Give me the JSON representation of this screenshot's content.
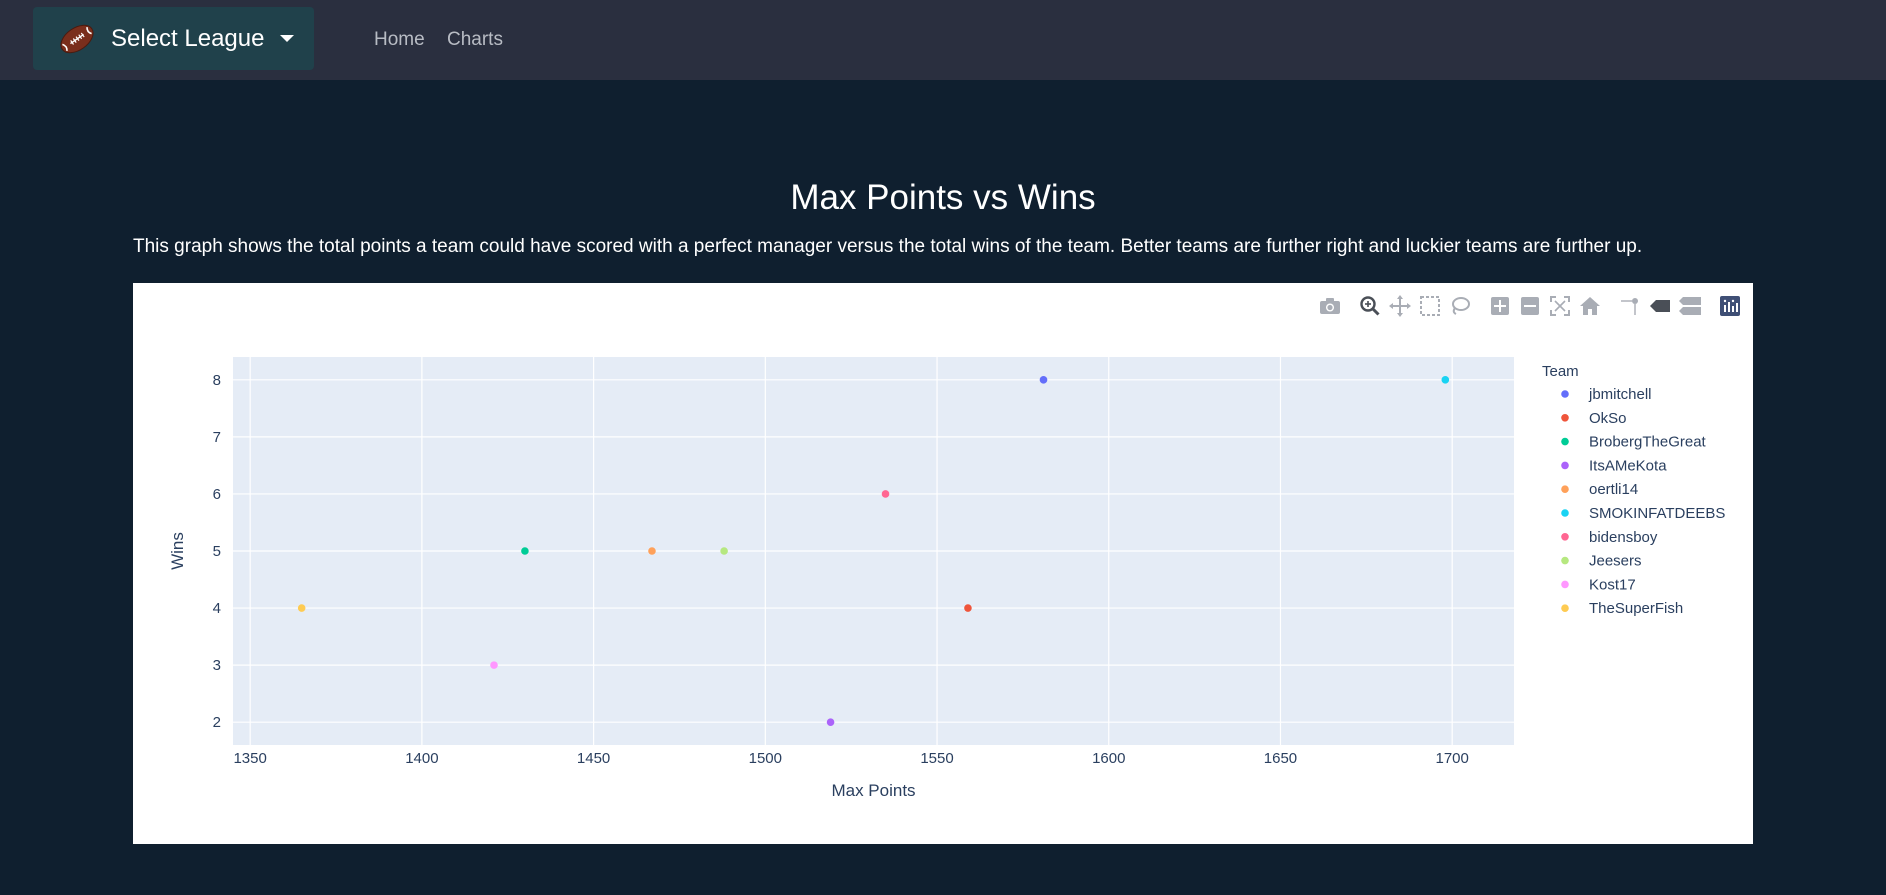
{
  "navbar": {
    "league_button_label": "Select League",
    "links": [
      "Home",
      "Charts"
    ]
  },
  "page": {
    "title": "Max Points vs Wins",
    "description": "This graph shows the total points a team could have scored with a perfect manager versus the total wins of the team. Better teams are further right and luckier teams are further up."
  },
  "modebar_icons": [
    "camera-icon",
    "zoom-icon",
    "pan-icon",
    "box-select-icon",
    "lasso-icon",
    "zoom-in-icon",
    "zoom-out-icon",
    "autoscale-icon",
    "reset-axes-icon",
    "spike-lines-icon",
    "hover-closest-icon",
    "hover-compare-icon",
    "plotly-logo-icon"
  ],
  "chart_data": {
    "type": "scatter",
    "xlabel": "Max Points",
    "ylabel": "Wins",
    "xlim": [
      1345,
      1718
    ],
    "ylim": [
      1.6,
      8.4
    ],
    "xticks": [
      1350,
      1400,
      1450,
      1500,
      1550,
      1600,
      1650,
      1700
    ],
    "yticks": [
      2,
      3,
      4,
      5,
      6,
      7,
      8
    ],
    "grid": true,
    "legend_title": "Team",
    "legend_position": "right",
    "series": [
      {
        "name": "jbmitchell",
        "color": "#636efa",
        "x": 1581,
        "y": 8
      },
      {
        "name": "OkSo",
        "color": "#ef553b",
        "x": 1559,
        "y": 4
      },
      {
        "name": "BrobergTheGreat",
        "color": "#00cc96",
        "x": 1430,
        "y": 5
      },
      {
        "name": "ItsAMeKota",
        "color": "#ab63fa",
        "x": 1519,
        "y": 2
      },
      {
        "name": "oertli14",
        "color": "#ffa15a",
        "x": 1467,
        "y": 5
      },
      {
        "name": "SMOKINFATDEEBS",
        "color": "#19d3f3",
        "x": 1698,
        "y": 8
      },
      {
        "name": "bidensboy",
        "color": "#ff6692",
        "x": 1535,
        "y": 6
      },
      {
        "name": "Jeesers",
        "color": "#b6e880",
        "x": 1488,
        "y": 5
      },
      {
        "name": "Kost17",
        "color": "#ff97ff",
        "x": 1421,
        "y": 3
      },
      {
        "name": "TheSuperFish",
        "color": "#fecb52",
        "x": 1365,
        "y": 4
      }
    ]
  }
}
